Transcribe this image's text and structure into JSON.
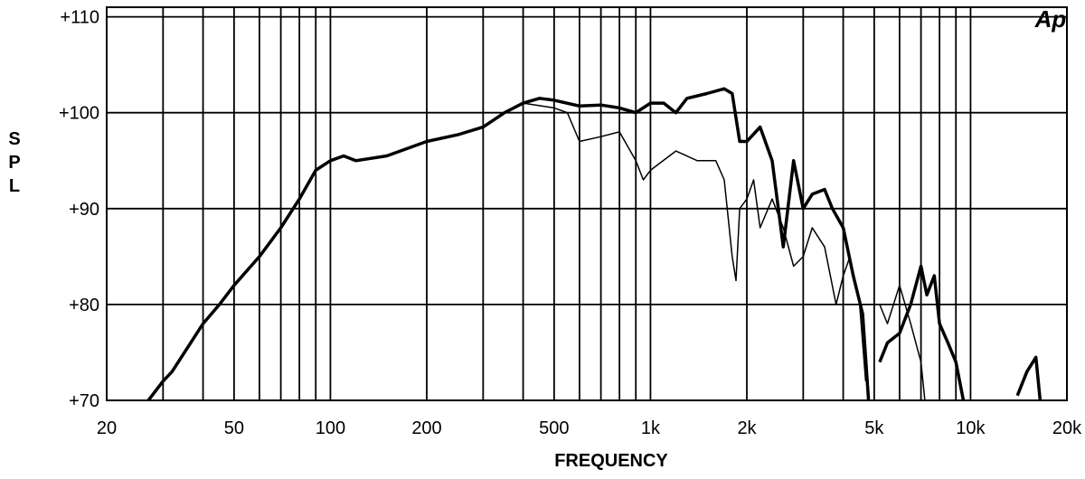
{
  "chart_data": {
    "type": "line",
    "logo": "Ap",
    "y_label": "SPL",
    "x_label": "FREQUENCY",
    "xlog": true,
    "grid": true,
    "xlim": [
      20,
      20000
    ],
    "ylim": [
      70,
      111
    ],
    "xticks": [
      20,
      50,
      100,
      200,
      500,
      {
        "value": 1000,
        "label": "1k"
      },
      {
        "value": 2000,
        "label": "2k"
      },
      {
        "value": 5000,
        "label": "5k"
      },
      {
        "value": 10000,
        "label": "10k"
      },
      {
        "value": 20000,
        "label": "20k"
      }
    ],
    "xgrid": [
      30,
      40,
      60,
      70,
      80,
      90,
      300,
      400,
      600,
      700,
      800,
      900,
      3000,
      4000,
      6000,
      7000,
      8000,
      9000
    ],
    "yticks": [
      {
        "value": 70,
        "label": "+70"
      },
      {
        "value": 80,
        "label": "+80"
      },
      {
        "value": 90,
        "label": "+90"
      },
      {
        "value": 100,
        "label": "+100"
      },
      {
        "value": 110,
        "label": "+110"
      }
    ],
    "series": [
      {
        "color": "#000000",
        "width": 3.5,
        "x": [
          27,
          30,
          32,
          35,
          40,
          45,
          50,
          60,
          70,
          80,
          90,
          100,
          110,
          120,
          150,
          200,
          250,
          300,
          350,
          400,
          450,
          500,
          600,
          700,
          800,
          900,
          1000,
          1100,
          1200,
          1300,
          1500,
          1700,
          1800,
          1900,
          2000,
          2200,
          2400,
          2600,
          2800,
          3000,
          3200,
          3500,
          3700,
          4000,
          4300,
          4600,
          4800,
          5000,
          5200,
          5500,
          6000,
          6500,
          7000,
          7300,
          7700,
          8000,
          8500,
          9000,
          9500,
          12000,
          14000,
          15000,
          16000,
          16500
        ],
        "values": [
          70,
          72,
          73,
          75,
          78,
          80,
          82,
          85,
          88,
          91,
          94,
          95,
          95.5,
          95,
          95.5,
          97,
          97.7,
          98.5,
          100,
          101,
          101.5,
          101.3,
          100.7,
          100.8,
          100.5,
          100,
          101,
          101,
          100,
          101.5,
          102,
          102.5,
          102,
          97,
          97,
          98.5,
          95,
          86,
          95,
          90,
          91.5,
          92,
          90,
          88,
          83,
          79,
          70,
          null,
          74,
          76,
          77,
          80,
          84,
          81,
          83,
          78,
          76,
          74,
          70,
          null,
          70.5,
          73,
          74.5,
          70
        ]
      },
      {
        "color": "#000000",
        "width": 1.5,
        "x": [
          400,
          500,
          550,
          600,
          700,
          800,
          900,
          950,
          1000,
          1200,
          1400,
          1600,
          1700,
          1800,
          1850,
          1900,
          2000,
          2100,
          2200,
          2400,
          2600,
          2800,
          3000,
          3200,
          3500,
          3800,
          4000,
          4200,
          4500,
          4700,
          5000,
          5200,
          5500,
          6000,
          6500,
          7000,
          7200
        ],
        "values": [
          101,
          100.5,
          100,
          97,
          97.5,
          98,
          95,
          93,
          94,
          96,
          95,
          95,
          93,
          85,
          82.5,
          90,
          91,
          93,
          88,
          91,
          88,
          84,
          85,
          88,
          86,
          80,
          83,
          85,
          80,
          72,
          null,
          80,
          78,
          82,
          78,
          74,
          70
        ]
      }
    ]
  }
}
